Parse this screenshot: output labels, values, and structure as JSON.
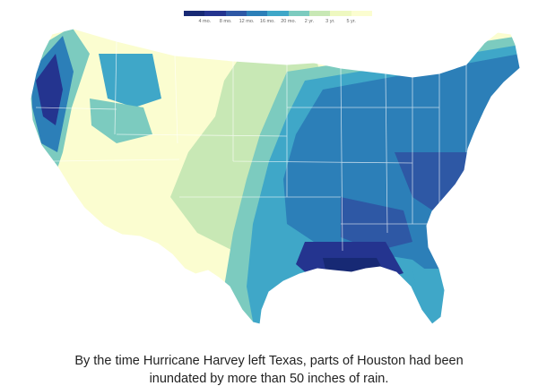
{
  "legend": {
    "colors": [
      "#172974",
      "#24348f",
      "#2e58a5",
      "#2c7fb8",
      "#3fa7c8",
      "#7ccbbf",
      "#c8e8b5",
      "#eef8c0",
      "#fbfdd0"
    ],
    "labels": [
      "4 mo.",
      "8 mo.",
      "12 mo.",
      "16 mo.",
      "20 mo.",
      "2 yr.",
      "3 yr.",
      "5 yr."
    ]
  },
  "map": {
    "palette": {
      "darkest": "#172974",
      "dark": "#24348f",
      "mid_dark": "#2e58a5",
      "mid": "#2c7fb8",
      "teal": "#3fa7c8",
      "aqua": "#7ccbbf",
      "pale_green": "#c8e8b5",
      "pale_yellow": "#eef8c0",
      "lightest": "#fbfdd0",
      "state_border": "#ffffff"
    }
  },
  "caption": {
    "text": "By the time Hurricane Harvey left Texas, parts of Houston had been inundated by more than 50 inches of rain."
  }
}
